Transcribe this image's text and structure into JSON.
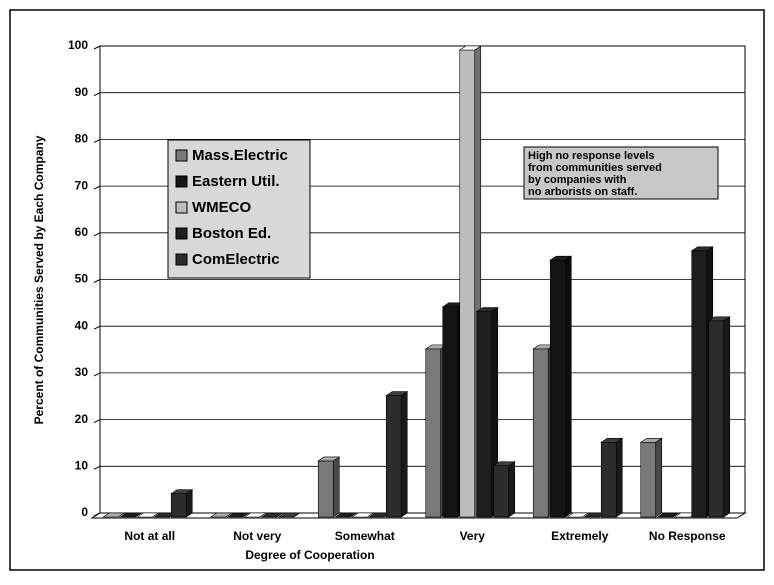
{
  "chart_data": {
    "type": "bar3d",
    "y_label": "Percent of Communities Served by Each Company",
    "x_label": "Degree of Cooperation",
    "categories": [
      "Not at all",
      "Not very",
      "Somewhat",
      "Very",
      "Extremely",
      "No Response"
    ],
    "series": [
      {
        "name": "Mass.Electric",
        "color": "#7a7a7a",
        "values": [
          0,
          0,
          12,
          36,
          36,
          16
        ]
      },
      {
        "name": "Eastern Util.",
        "color": "#141414",
        "values": [
          0,
          0,
          0,
          45,
          55,
          0
        ]
      },
      {
        "name": "WMECO",
        "color": "#bdbdbd",
        "values": [
          0,
          0,
          0,
          100,
          0,
          0
        ]
      },
      {
        "name": "Boston Ed.",
        "color": "#1e1e1e",
        "values": [
          0,
          0,
          0,
          44,
          0,
          57
        ]
      },
      {
        "name": "ComElectric",
        "color": "#2c2c2c",
        "values": [
          5,
          0,
          26,
          11,
          16,
          42
        ]
      }
    ],
    "ylim": [
      0,
      100
    ],
    "yticks": [
      0,
      10,
      20,
      30,
      40,
      50,
      60,
      70,
      80,
      90,
      100
    ],
    "grid": true,
    "annotation": [
      "High no response levels",
      "from communities served",
      "by companies with",
      "no arborists on staff."
    ]
  }
}
